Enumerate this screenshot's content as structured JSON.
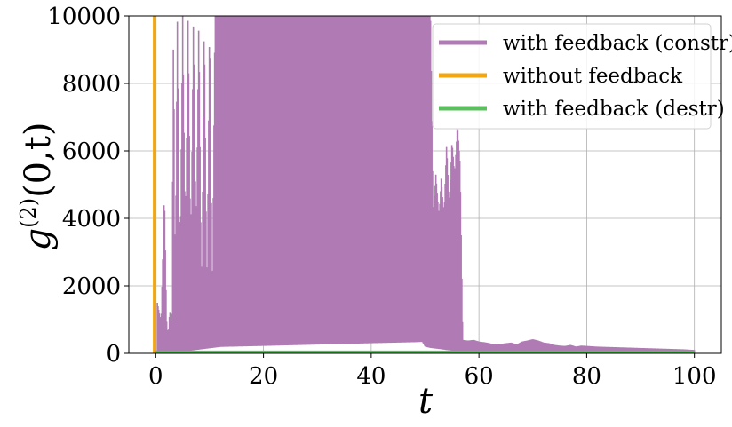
{
  "chart_data": {
    "type": "line",
    "xlabel": "t",
    "ylabel": "g^(2)(0,t)",
    "xlim": [
      -5,
      105
    ],
    "ylim": [
      0,
      10000
    ],
    "xticks": [
      0,
      20,
      40,
      60,
      80,
      100
    ],
    "yticks": [
      0,
      2000,
      4000,
      6000,
      8000,
      10000
    ],
    "grid": true,
    "legend_position": "top-right",
    "series": [
      {
        "name": "with feedback (constr)",
        "color": "#b07ab4",
        "style": "dense oscillation",
        "envelope": {
          "x": [
            0.3,
            1,
            1.6,
            2,
            2.3,
            2.6,
            3,
            3.3,
            3.6,
            4,
            4.5,
            5,
            5.5,
            6,
            6.5,
            7,
            7.5,
            8,
            8.5,
            9,
            9.5,
            10,
            10.5,
            11,
            11.5,
            12,
            20,
            30,
            40,
            48,
            49.5,
            50,
            50.5,
            51,
            51.5,
            52,
            52.6,
            53,
            53.5,
            54,
            54.5,
            55,
            55.5,
            56,
            56.5,
            57,
            58,
            59,
            60,
            61,
            62,
            63,
            64,
            65,
            66,
            67,
            68,
            69,
            70,
            71,
            72,
            73,
            74,
            75,
            76,
            77,
            78,
            79,
            80,
            82,
            84,
            86,
            88,
            90,
            92,
            94,
            96,
            98,
            100
          ],
          "upper": [
            1500,
            900,
            4800,
            1000,
            400,
            1300,
            500,
            10000,
            1000,
            10000,
            2000,
            10000,
            3000,
            10000,
            2500,
            10000,
            3000,
            10000,
            1000,
            10000,
            1200,
            10000,
            1300,
            10000,
            10000,
            10000,
            10000,
            10000,
            10000,
            10000,
            10000,
            10000,
            10000,
            10000,
            4000,
            5300,
            4000,
            5200,
            4000,
            6200,
            4200,
            6300,
            5200,
            6800,
            5600,
            400,
            380,
            400,
            350,
            330,
            300,
            260,
            280,
            300,
            320,
            260,
            350,
            380,
            420,
            380,
            320,
            300,
            250,
            230,
            220,
            250,
            200,
            230,
            220,
            200,
            190,
            180,
            170,
            160,
            150,
            140,
            130,
            120,
            100
          ],
          "lower": [
            0,
            0,
            0,
            0,
            0,
            0,
            0,
            0,
            0,
            0,
            0,
            50,
            60,
            70,
            80,
            90,
            100,
            110,
            120,
            130,
            140,
            150,
            160,
            170,
            180,
            190,
            220,
            260,
            300,
            330,
            340,
            200,
            180,
            160,
            150,
            140,
            130,
            120,
            110,
            100,
            90,
            80,
            70,
            60,
            50,
            40,
            30,
            30,
            25,
            25,
            20,
            20,
            20,
            15,
            15,
            15,
            15,
            15,
            15,
            12,
            12,
            12,
            10,
            10,
            10,
            10,
            10,
            10,
            10,
            8,
            8,
            8,
            6,
            6,
            6,
            5,
            5,
            5,
            5
          ]
        }
      },
      {
        "name": "without feedback",
        "color": "#f2a612",
        "x": [
          -0.2,
          -0.2
        ],
        "y": [
          0,
          10000
        ]
      },
      {
        "name": "with feedback (destr)",
        "color": "#5bbf5f",
        "x": [
          0,
          100
        ],
        "y": [
          30,
          30
        ]
      }
    ]
  }
}
